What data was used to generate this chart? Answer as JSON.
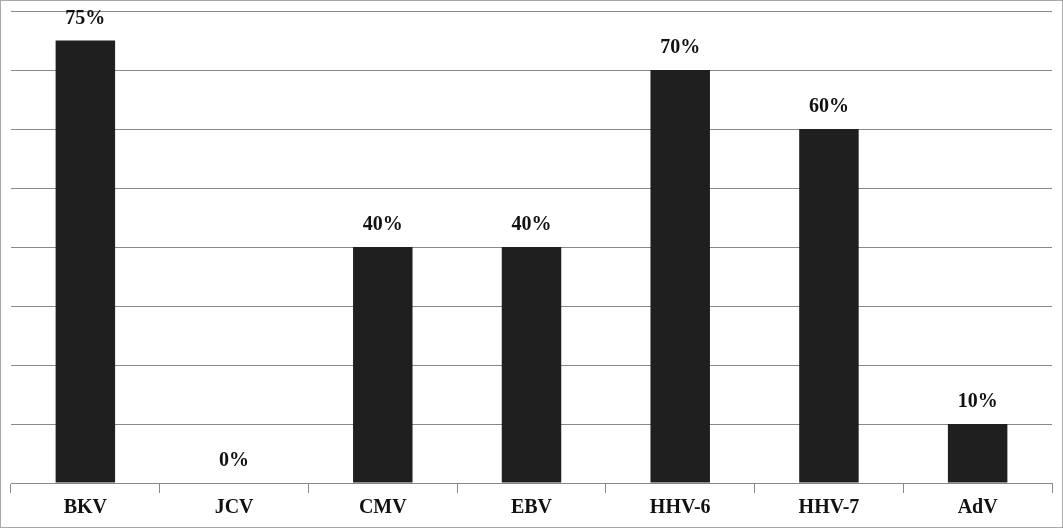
{
  "chart_data": {
    "type": "bar",
    "categories": [
      "BKV",
      "JCV",
      "CMV",
      "EBV",
      "HHV-6",
      "HHV-7",
      "AdV"
    ],
    "values": [
      75,
      0,
      40,
      40,
      70,
      60,
      10
    ],
    "color": "#1f1f1f",
    "value_labels": [
      "75%",
      "0%",
      "40%",
      "40%",
      "70%",
      "60%",
      "10%"
    ],
    "ylim": [
      0,
      80
    ],
    "yticks": [
      {
        "value": 0,
        "label": null
      },
      {
        "value": 10,
        "label": null
      },
      {
        "value": 20,
        "label": null
      },
      {
        "value": 30,
        "label": null
      },
      {
        "value": 40,
        "label": null
      },
      {
        "value": 50,
        "label": null
      },
      {
        "value": 60,
        "label": null
      },
      {
        "value": 70,
        "label": null
      },
      {
        "value": 80,
        "label": null
      }
    ],
    "grid": "y",
    "tick_labels": "x",
    "legend": false
  }
}
